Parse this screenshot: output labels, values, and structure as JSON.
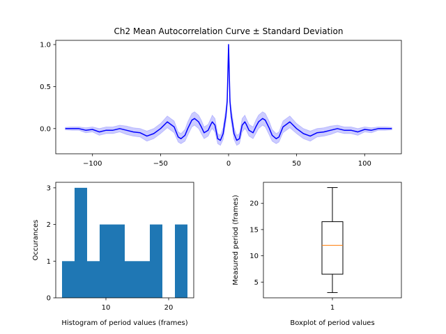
{
  "chart_data": [
    {
      "type": "line",
      "title": "Ch2 Mean Autocorrelation Curve ± Standard Deviation",
      "xlabel": "",
      "ylabel": "",
      "xlim": [
        -127,
        127
      ],
      "ylim": [
        -0.3,
        1.05
      ],
      "xticks": [
        -100,
        -50,
        0,
        50,
        100
      ],
      "xtick_labels": [
        "−100",
        "−50",
        "0",
        "50",
        "100"
      ],
      "yticks": [
        0.0,
        0.5,
        1.0
      ],
      "ytick_labels": [
        "0.0",
        "0.5",
        "1.0"
      ],
      "line_color": "#0000ff",
      "band_color": "#0000ff",
      "band_opacity": 0.2,
      "series": [
        {
          "x": [
            -120,
            -115,
            -110,
            -105,
            -100,
            -95,
            -90,
            -85,
            -80,
            -75,
            -70,
            -65,
            -60,
            -55,
            -50,
            -45,
            -40,
            -37,
            -35,
            -32,
            -30,
            -27,
            -25,
            -22,
            -20,
            -18,
            -15,
            -13,
            -12,
            -10,
            -8,
            -6,
            -4,
            -3,
            -2,
            -1,
            0
          ],
          "mean": [
            0.0,
            0.0,
            0.0,
            -0.02,
            -0.01,
            -0.04,
            -0.02,
            -0.02,
            0.0,
            -0.02,
            -0.04,
            -0.05,
            -0.09,
            -0.06,
            0.0,
            0.08,
            0.02,
            -0.1,
            -0.12,
            -0.08,
            0.0,
            0.1,
            0.12,
            0.08,
            0.02,
            -0.05,
            -0.02,
            0.05,
            0.08,
            0.04,
            -0.12,
            -0.14,
            -0.06,
            0.05,
            0.15,
            0.32,
            1.0
          ],
          "std": [
            0.015,
            0.02,
            0.02,
            0.03,
            0.03,
            0.04,
            0.04,
            0.04,
            0.04,
            0.05,
            0.05,
            0.05,
            0.06,
            0.06,
            0.06,
            0.07,
            0.07,
            0.06,
            0.06,
            0.07,
            0.08,
            0.08,
            0.08,
            0.08,
            0.08,
            0.07,
            0.07,
            0.07,
            0.08,
            0.08,
            0.06,
            0.06,
            0.07,
            0.08,
            0.08,
            0.06,
            0.0
          ],
          "symmetric_about_zero": true
        }
      ]
    },
    {
      "type": "bar",
      "subtype": "histogram",
      "title": "",
      "xlabel": "Histogram of period values (frames)",
      "ylabel": "Occurances",
      "xlim": [
        2.0,
        24.0
      ],
      "ylim": [
        0,
        3.15
      ],
      "xticks": [
        10,
        20
      ],
      "xtick_labels": [
        "10",
        "20"
      ],
      "yticks": [
        0,
        1,
        2,
        3
      ],
      "ytick_labels": [
        "0",
        "1",
        "2",
        "3"
      ],
      "bar_color": "#1f77b4",
      "bin_edges": [
        3,
        5,
        7,
        9,
        11,
        13,
        15,
        17,
        19,
        21,
        23
      ],
      "counts": [
        1,
        3,
        1,
        2,
        2,
        1,
        1,
        2,
        0,
        2
      ]
    },
    {
      "type": "box",
      "title": "",
      "xlabel": "Boxplot of period values",
      "ylabel": "Measured period (frames)",
      "xlim": [
        0.5,
        1.5
      ],
      "ylim": [
        2.0,
        24.0
      ],
      "xticks": [
        1
      ],
      "xtick_labels": [
        "1"
      ],
      "yticks": [
        5,
        10,
        15,
        20
      ],
      "ytick_labels": [
        "5",
        "10",
        "15",
        "20"
      ],
      "median_color": "#ff7f0e",
      "box": {
        "whisker_low": 3,
        "q1": 6.5,
        "median": 12,
        "q3": 16.5,
        "whisker_high": 23
      }
    }
  ]
}
